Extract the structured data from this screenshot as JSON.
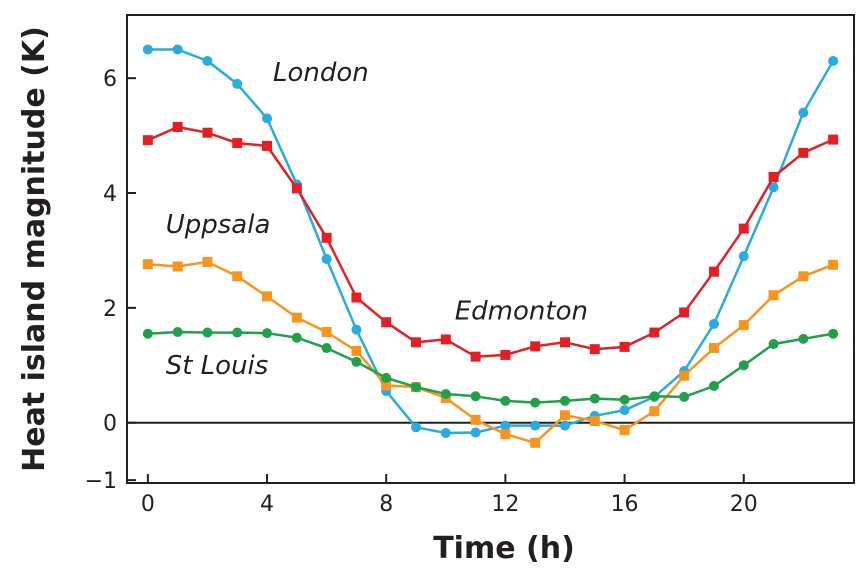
{
  "chart_data": {
    "type": "line",
    "xlabel": "Time (h)",
    "ylabel": "Heat island magnitude (K)",
    "xlim": [
      -0.7,
      23.7
    ],
    "ylim": [
      -1.05,
      7.1
    ],
    "xticks": [
      0,
      4,
      8,
      12,
      16,
      20
    ],
    "yticks": [
      -1,
      0,
      2,
      4,
      6
    ],
    "xtick_labels": [
      "0",
      "4",
      "8",
      "12",
      "16",
      "20"
    ],
    "ytick_labels": [
      "−1",
      "0",
      "2",
      "4",
      "6"
    ],
    "zero_line": true,
    "grid": false,
    "x": [
      0,
      1,
      2,
      3,
      4,
      5,
      6,
      7,
      8,
      9,
      10,
      11,
      12,
      13,
      14,
      15,
      16,
      17,
      18,
      19,
      20,
      21,
      22,
      23
    ],
    "series": [
      {
        "name": "London",
        "color": "#29aae1",
        "marker": "circle",
        "label_at": [
          4.2,
          5.95
        ],
        "values": [
          6.5,
          6.5,
          6.3,
          5.9,
          5.3,
          4.15,
          2.85,
          1.62,
          0.55,
          -0.08,
          -0.18,
          -0.17,
          -0.05,
          -0.05,
          -0.05,
          0.12,
          0.22,
          0.45,
          0.9,
          1.72,
          2.9,
          4.1,
          5.4,
          6.3
        ]
      },
      {
        "name": "Edmonton",
        "color": "#e31f26",
        "marker": "square",
        "label_at": [
          10.3,
          1.8
        ],
        "values": [
          4.92,
          5.15,
          5.05,
          4.87,
          4.82,
          4.08,
          3.22,
          2.18,
          1.75,
          1.4,
          1.45,
          1.15,
          1.18,
          1.33,
          1.4,
          1.28,
          1.32,
          1.57,
          1.92,
          2.63,
          3.38,
          4.28,
          4.7,
          4.93
        ]
      },
      {
        "name": "Uppsala",
        "color": "#f7941d",
        "marker": "square",
        "label_at": [
          0.6,
          3.3
        ],
        "values": [
          2.76,
          2.72,
          2.8,
          2.55,
          2.2,
          1.83,
          1.58,
          1.25,
          0.65,
          0.62,
          0.43,
          0.05,
          -0.2,
          -0.35,
          0.13,
          0.03,
          -0.13,
          0.2,
          0.82,
          1.3,
          1.7,
          2.22,
          2.55,
          2.75
        ]
      },
      {
        "name": "St Louis",
        "color": "#1fa049",
        "marker": "circle",
        "label_at": [
          0.6,
          0.85
        ],
        "values": [
          1.55,
          1.58,
          1.57,
          1.57,
          1.56,
          1.48,
          1.3,
          1.06,
          0.78,
          0.62,
          0.5,
          0.46,
          0.38,
          0.35,
          0.38,
          0.42,
          0.4,
          0.46,
          0.45,
          0.64,
          1.0,
          1.37,
          1.46,
          1.55
        ]
      }
    ]
  }
}
